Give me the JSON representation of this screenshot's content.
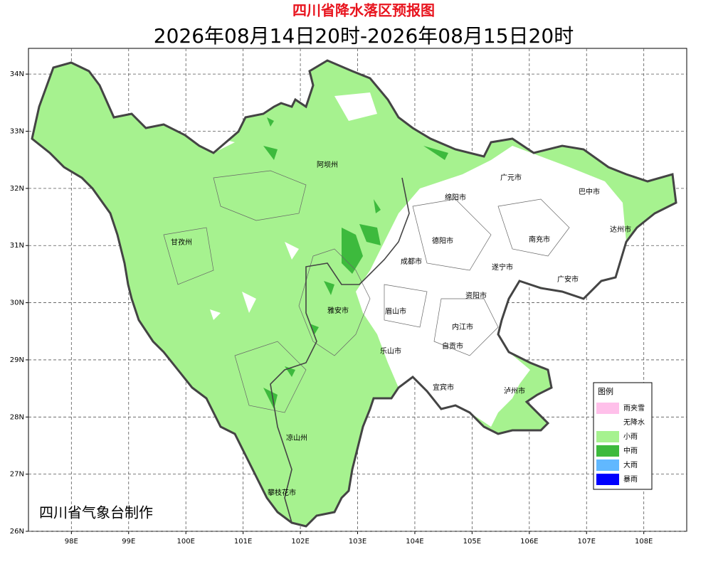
{
  "title": "四川省降水落区预报图",
  "subtitle": "2026年08月14日20时-2026年08月15日20时",
  "map": {
    "xlim": [
      97.25,
      108.75
    ],
    "ylim": [
      26,
      34.45
    ],
    "grid": true,
    "xticks": [
      {
        "value": 98,
        "label": "98E"
      },
      {
        "value": 99,
        "label": "99E"
      },
      {
        "value": 100,
        "label": "100E"
      },
      {
        "value": 101,
        "label": "101E"
      },
      {
        "value": 102,
        "label": "102E"
      },
      {
        "value": 103,
        "label": "103E"
      },
      {
        "value": 104,
        "label": "104E"
      },
      {
        "value": 105,
        "label": "105E"
      },
      {
        "value": 106,
        "label": "106E"
      },
      {
        "value": 107,
        "label": "107E"
      },
      {
        "value": 108,
        "label": "108E"
      }
    ],
    "yticks": [
      {
        "value": 26,
        "label": "26N"
      },
      {
        "value": 27,
        "label": "27N"
      },
      {
        "value": 28,
        "label": "28N"
      },
      {
        "value": 29,
        "label": "29N"
      },
      {
        "value": 30,
        "label": "30N"
      },
      {
        "value": 31,
        "label": "31N"
      },
      {
        "value": 32,
        "label": "32N"
      },
      {
        "value": 33,
        "label": "33N"
      },
      {
        "value": 34,
        "label": "34N"
      }
    ]
  },
  "cities": [
    "阿坝州",
    "广元市",
    "绵阳市",
    "巴中市",
    "达州市",
    "甘孜州",
    "德阳市",
    "南充市",
    "成都市",
    "遂宁市",
    "广安市",
    "资阳市",
    "雅安市",
    "眉山市",
    "内江市",
    "自贡市",
    "乐山市",
    "宜宾市",
    "泸州市",
    "凉山州",
    "攀枝花市"
  ],
  "legend": {
    "title": "图例",
    "items": [
      {
        "label": "雨夹雪",
        "color": "#ffc0ea"
      },
      {
        "label": "无降水",
        "color": "#ffffff"
      },
      {
        "label": "小雨",
        "color": "#a6f28f"
      },
      {
        "label": "中雨",
        "color": "#3dba3d"
      },
      {
        "label": "大雨",
        "color": "#61b8ff"
      },
      {
        "label": "暴雨",
        "color": "#0000fe"
      }
    ]
  },
  "credit": "四川省气象台制作"
}
